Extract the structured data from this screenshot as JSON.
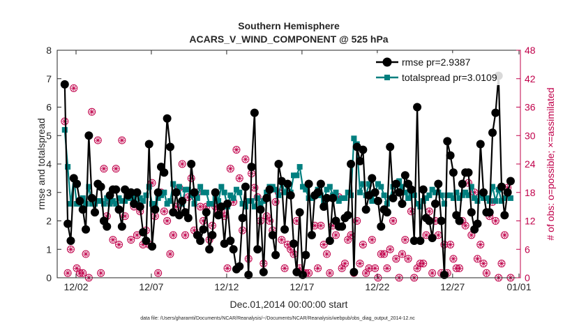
{
  "chart_data": {
    "type": "line",
    "title": "Southern Hemisphere",
    "subtitle": "ACARS_V_WIND_COMPONENT @ 525 hPa",
    "xlabel": "Dec.01,2014 00:00:00 start",
    "ylabel_left": "rmse and totalspread",
    "ylabel_right": "# of obs: o=possible; ×=assimilated",
    "footnote": "data file: /Users/gharamti/Documents/NCAR/Reanalysis/~/Documents/NCAR/Reanalysis/webpub/obs_diag_output_2014-12.nc",
    "xlim": [
      0.5,
      31.25
    ],
    "ylim_left": [
      0,
      8
    ],
    "ylim_right": [
      0,
      48
    ],
    "x_ticks": [
      1.75,
      6.75,
      11.75,
      16.75,
      21.75,
      26.75,
      31.75
    ],
    "x_tick_labels": [
      "12/02",
      "12/07",
      "12/12",
      "12/17",
      "12/22",
      "12/27",
      "01/01"
    ],
    "y_ticks_left": [
      0,
      1,
      2,
      3,
      4,
      5,
      6,
      7,
      8
    ],
    "y_ticks_right": [
      0,
      6,
      12,
      18,
      24,
      30,
      36,
      42,
      48
    ],
    "grid": false,
    "legend_position": "top-right",
    "colors": {
      "rmse": "#000000",
      "totalspread": "#007f7f",
      "obs": "#c0004a",
      "axis": "#262626"
    },
    "series": [
      {
        "name": "rmse pr=2.9387",
        "marker": "circle",
        "values": [
          6.8,
          1.9,
          1.3,
          3.5,
          3.3,
          2.7,
          2.4,
          1.7,
          5.0,
          2.8,
          2.3,
          3.3,
          3.2,
          2.0,
          1.8,
          2.9,
          3.1,
          3.1,
          2.4,
          1.8,
          3.1,
          2.9,
          3.0,
          2.6,
          3.0,
          2.5,
          1.6,
          1.3,
          4.7,
          1.1,
          2.4,
          3.0,
          3.9,
          3.7,
          5.6,
          4.6,
          2.3,
          3.0,
          2.2,
          2.7,
          2.3,
          2.1,
          4.0,
          3.0,
          1.5,
          1.3,
          1.7,
          2.3,
          1.0,
          1.5,
          3.0,
          2.2,
          2.5,
          1.2,
          2.6,
          1.3,
          1.0,
          0.3,
          0.4,
          2.1,
          3.2,
          0.1,
          3.9,
          5.8,
          1.0,
          2.4,
          0.2,
          2.8,
          3.1,
          1.5,
          0.8,
          4.0,
          3.4,
          1.7,
          3.3,
          2.9,
          1.2,
          0.2,
          2.3,
          0.1,
          0.8,
          3.3,
          1.5,
          2.9,
          3.0,
          3.3,
          2.5,
          2.8,
          1.3,
          2.8,
          2.0,
          1.8,
          1.8,
          2.1,
          2.2,
          4.0,
          0.2,
          4.6,
          4.1,
          4.5,
          2.4,
          2.9,
          3.5,
          3.0,
          2.7,
          1.8,
          2.4,
          2.3,
          4.6,
          2.8,
          3.3,
          3.0,
          2.6,
          3.6,
          3.3,
          3.1,
          1.3,
          6.0,
          1.3,
          3.1,
          2.1,
          2.0,
          1.4,
          2.6,
          3.3,
          2.0,
          0.1,
          4.8,
          4.3,
          3.7,
          2.2,
          2.0,
          3.3,
          3.7,
          3.7,
          2.3,
          1.7,
          1.9,
          4.7,
          3.0,
          2.3,
          2.3,
          5.1,
          5.8,
          7.1,
          3.2,
          2.2,
          3.0,
          3.4
        ]
      },
      {
        "name": "totalspread pr=3.0109",
        "marker": "square",
        "values": [
          5.2,
          3.9,
          2.6,
          3.5,
          2.6,
          2.6,
          2.8,
          2.6,
          3.2,
          2.6,
          2.6,
          2.7,
          2.7,
          2.6,
          2.8,
          2.6,
          2.7,
          2.6,
          2.8,
          2.7,
          2.7,
          2.8,
          2.8,
          2.8,
          2.6,
          2.8,
          2.7,
          2.9,
          3.2,
          2.6,
          2.6,
          2.8,
          2.9,
          3.0,
          2.6,
          2.7,
          3.3,
          3.0,
          3.2,
          2.6,
          3.1,
          3.1,
          2.9,
          2.6,
          2.8,
          3.2,
          3.0,
          3.0,
          2.6,
          2.6,
          2.8,
          2.7,
          3.2,
          3.0,
          2.5,
          2.9,
          2.8,
          3.1,
          3.0,
          2.6,
          2.5,
          2.7,
          2.7,
          2.5,
          2.8,
          2.6,
          2.7,
          3.0,
          3.2,
          3.2,
          3.1,
          2.9,
          3.4,
          3.0,
          3.3,
          3.0,
          3.6,
          3.6,
          3.9,
          3.2,
          3.1,
          2.8,
          2.8,
          2.9,
          3.1,
          2.9,
          2.7,
          3.1,
          3.2,
          2.9,
          3.0,
          2.7,
          2.8,
          2.8,
          3.0,
          2.9,
          4.9,
          4.7,
          3.0,
          3.3,
          2.9,
          3.3,
          2.7,
          3.0,
          3.3,
          3.2,
          2.9,
          2.6,
          2.8,
          3.2,
          3.3,
          3.4,
          3.2,
          3.0,
          2.8,
          3.0,
          2.9,
          2.6,
          2.5,
          2.7,
          2.8,
          2.9,
          3.1,
          3.0,
          3.0,
          2.9,
          2.6,
          2.9,
          2.9,
          2.8,
          3.0,
          2.8,
          2.9,
          3.0,
          2.9,
          3.2,
          2.8,
          2.7,
          2.9,
          2.8,
          2.8,
          2.7,
          3.2,
          2.7,
          3.1,
          2.7,
          2.8,
          3.0,
          2.8
        ]
      },
      {
        "name": "obs possible",
        "marker": "circle-open",
        "axis": "right",
        "values": [
          33,
          1,
          6,
          40,
          2,
          1,
          1,
          5,
          0,
          35,
          16,
          29,
          1,
          23,
          13,
          16,
          8,
          23,
          7,
          29,
          13,
          18,
          8,
          15,
          9,
          14,
          7,
          10,
          7,
          20,
          13,
          1,
          18,
          14,
          12,
          5,
          9,
          15,
          19,
          24,
          9,
          17,
          21,
          10,
          18,
          15,
          12,
          15,
          8,
          11,
          15,
          14,
          14,
          13,
          2,
          23,
          16,
          27,
          21,
          10,
          25,
          4,
          22,
          19,
          17,
          12,
          3,
          13,
          12,
          10,
          16,
          18,
          8,
          2,
          7,
          6,
          5,
          12,
          2,
          1,
          1,
          1,
          9,
          11,
          2,
          11,
          7,
          5,
          1,
          11,
          9,
          17,
          2,
          3,
          8,
          9,
          1,
          12,
          3,
          7,
          1,
          2,
          8,
          2,
          0,
          5,
          5,
          2,
          6,
          12,
          4,
          0,
          5,
          8,
          4,
          14,
          0,
          2,
          3,
          3,
          9,
          14,
          1,
          12,
          9,
          1,
          7,
          1,
          7,
          4,
          2,
          2,
          12,
          11,
          20,
          9,
          18,
          4,
          7,
          3,
          1,
          13,
          16,
          12,
          0,
          3,
          9,
          19,
          0
        ]
      },
      {
        "name": "obs assimilated",
        "marker": "asterisk",
        "axis": "right",
        "values": [
          33,
          1,
          6,
          40,
          2,
          1,
          1,
          5,
          0,
          35,
          16,
          29,
          1,
          23,
          13,
          16,
          8,
          23,
          7,
          29,
          13,
          18,
          8,
          15,
          9,
          14,
          7,
          10,
          7,
          20,
          13,
          1,
          18,
          14,
          12,
          5,
          9,
          15,
          19,
          24,
          9,
          17,
          21,
          10,
          18,
          15,
          12,
          15,
          8,
          11,
          15,
          14,
          14,
          13,
          2,
          23,
          16,
          27,
          21,
          10,
          25,
          4,
          22,
          19,
          17,
          12,
          3,
          13,
          12,
          10,
          16,
          18,
          8,
          2,
          7,
          6,
          5,
          12,
          2,
          1,
          1,
          1,
          9,
          11,
          2,
          11,
          7,
          5,
          1,
          11,
          9,
          17,
          2,
          3,
          8,
          9,
          1,
          12,
          3,
          7,
          1,
          2,
          8,
          2,
          0,
          5,
          5,
          2,
          6,
          12,
          4,
          0,
          5,
          8,
          4,
          14,
          0,
          2,
          3,
          3,
          9,
          14,
          1,
          12,
          9,
          1,
          7,
          1,
          7,
          4,
          2,
          2,
          12,
          11,
          20,
          9,
          18,
          4,
          7,
          3,
          1,
          13,
          16,
          12,
          0,
          3,
          9,
          19,
          0
        ]
      }
    ]
  }
}
